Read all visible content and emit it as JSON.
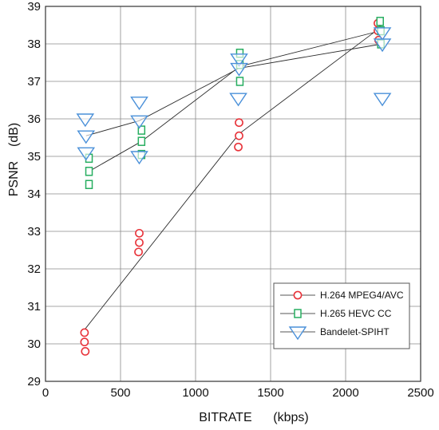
{
  "chart_data": {
    "type": "scatter",
    "title": "",
    "xlabel": "BITRATE      (kbps)",
    "ylabel": "PSNR    (dB)",
    "xlim": [
      0,
      2500
    ],
    "ylim": [
      29,
      39
    ],
    "x_ticks": [
      "0",
      "500",
      "1000",
      "1500",
      "2000",
      "2500"
    ],
    "y_ticks": [
      "29",
      "30",
      "31",
      "32",
      "33",
      "34",
      "35",
      "36",
      "37",
      "38",
      "39"
    ],
    "grid": true,
    "legend_position": "bottom-right",
    "series": [
      {
        "name": "H.264 MPEG4/AVC",
        "marker": "circle",
        "color": "#e8333a",
        "points": [
          [
            260,
            30.3
          ],
          [
            260,
            30.05
          ],
          [
            265,
            29.8
          ],
          [
            625,
            32.95
          ],
          [
            625,
            32.7
          ],
          [
            620,
            32.45
          ],
          [
            1290,
            35.9
          ],
          [
            1290,
            35.55
          ],
          [
            1285,
            35.25
          ],
          [
            2215,
            38.55
          ],
          [
            2215,
            38.35
          ],
          [
            2220,
            38.1
          ]
        ],
        "trend": [
          [
            265,
            30.4
          ],
          [
            1290,
            35.6
          ],
          [
            2220,
            38.4
          ]
        ]
      },
      {
        "name": "H.265 HEVC CC",
        "marker": "square",
        "color": "#27ae60",
        "points": [
          [
            290,
            34.95
          ],
          [
            290,
            34.6
          ],
          [
            290,
            34.25
          ],
          [
            640,
            35.7
          ],
          [
            640,
            35.4
          ],
          [
            640,
            35.05
          ],
          [
            1295,
            37.75
          ],
          [
            1295,
            37.45
          ],
          [
            1295,
            37.0
          ],
          [
            2230,
            38.6
          ],
          [
            2235,
            38.35
          ],
          [
            2235,
            38.0
          ]
        ],
        "trend": [
          [
            290,
            34.6
          ],
          [
            640,
            35.4
          ],
          [
            1295,
            37.4
          ],
          [
            2235,
            38.35
          ]
        ]
      },
      {
        "name": "Bandelet-SPIHT",
        "marker": "triangle-down",
        "color": "#4a90d9",
        "points": [
          [
            265,
            36.0
          ],
          [
            270,
            35.55
          ],
          [
            270,
            35.1
          ],
          [
            625,
            36.45
          ],
          [
            625,
            35.95
          ],
          [
            625,
            35.0
          ],
          [
            1290,
            37.6
          ],
          [
            1290,
            37.35
          ],
          [
            1285,
            36.55
          ],
          [
            2245,
            38.3
          ],
          [
            2245,
            38.0
          ],
          [
            2245,
            36.55
          ]
        ],
        "trend": [
          [
            270,
            35.55
          ],
          [
            625,
            35.95
          ],
          [
            1290,
            37.35
          ],
          [
            2245,
            38.0
          ]
        ]
      }
    ]
  }
}
